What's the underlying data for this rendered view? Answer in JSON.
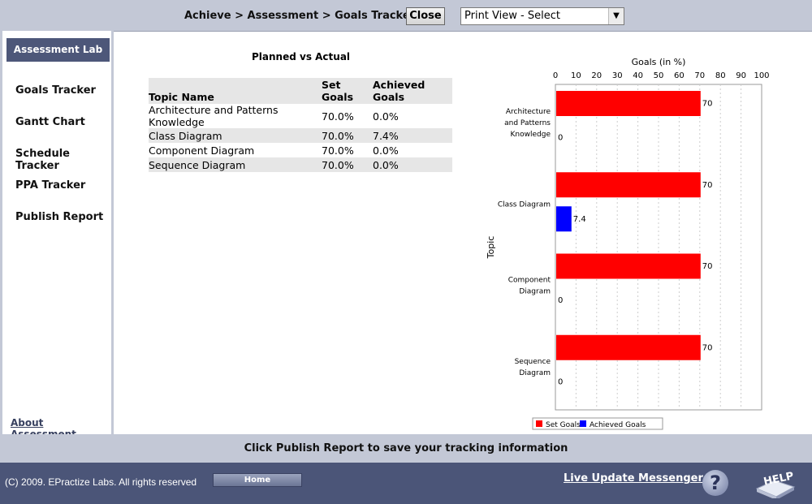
{
  "header": {
    "breadcrumb": "Achieve > Assessment > Goals Tracker",
    "close_label": "Close",
    "print_view_select": "Print View - Select"
  },
  "sidebar": {
    "lab_label": "Assessment Lab",
    "items": [
      {
        "label": "Goals Tracker"
      },
      {
        "label": "Gantt Chart"
      },
      {
        "label": "Schedule Tracker"
      },
      {
        "label": "PPA Tracker"
      },
      {
        "label": "Publish Report"
      }
    ],
    "about_label": "About Assessment"
  },
  "table": {
    "title": "Planned vs Actual",
    "headers": [
      "Topic Name",
      "Set Goals",
      "Achieved Goals"
    ],
    "rows": [
      {
        "topic": "Architecture and Patterns Knowledge",
        "set": "70.0%",
        "achieved": "0.0%"
      },
      {
        "topic": "Class Diagram",
        "set": "70.0%",
        "achieved": "7.4%"
      },
      {
        "topic": "Component Diagram",
        "set": "70.0%",
        "achieved": "0.0%"
      },
      {
        "topic": "Sequence Diagram",
        "set": "70.0%",
        "achieved": "0.0%"
      }
    ]
  },
  "chart_data": {
    "type": "bar",
    "orientation": "horizontal",
    "title": "",
    "xlabel": "Goals (in %)",
    "ylabel": "Topic",
    "xlim": [
      0,
      100
    ],
    "xticks": [
      0,
      10,
      20,
      30,
      40,
      50,
      60,
      70,
      80,
      90,
      100
    ],
    "categories": [
      [
        "Architecture",
        "and Patterns",
        "Knowledge"
      ],
      [
        "Class Diagram"
      ],
      [
        "Component",
        "Diagram"
      ],
      [
        "Sequence",
        "Diagram"
      ]
    ],
    "series": [
      {
        "name": "Set Goals",
        "color": "#ff0000",
        "values": [
          70,
          70,
          70,
          70
        ]
      },
      {
        "name": "Achieved Goals",
        "color": "#0000ff",
        "values": [
          0,
          7.4,
          0,
          0
        ]
      }
    ],
    "data_labels": [
      [
        "70",
        "70",
        "70",
        "70"
      ],
      [
        "0",
        "7.4",
        "0",
        "0"
      ]
    ],
    "grid": true,
    "legend": "bottom"
  },
  "status": {
    "message": "Click Publish Report to save your tracking information"
  },
  "footer": {
    "copyright": "(C) 2009. EPractize Labs. All rights reserved",
    "home_label": "Home",
    "messenger_label": "Live Update Messenger",
    "help_q": "?",
    "help_label": "HELP"
  }
}
